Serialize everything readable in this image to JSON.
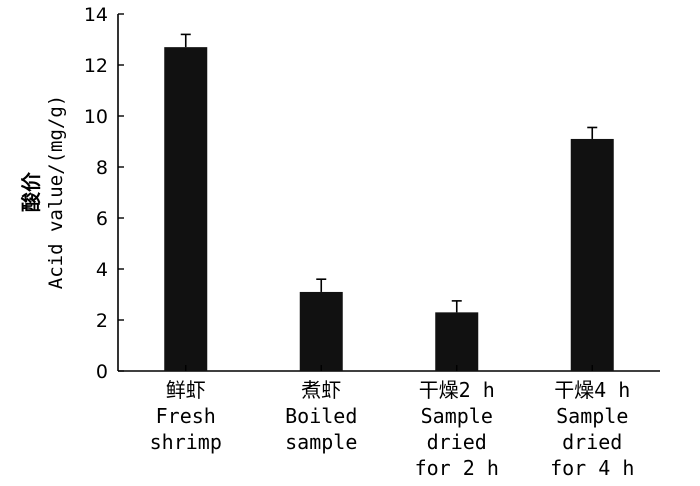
{
  "chart_data": {
    "type": "bar",
    "categories": [
      [
        "鲜虾",
        "Fresh",
        "shrimp"
      ],
      [
        "煮虾",
        "Boiled",
        "sample"
      ],
      [
        "干燥2 h",
        "Sample",
        "dried",
        "for 2 h"
      ],
      [
        "干燥4 h",
        "Sample",
        "dried",
        "for 4 h"
      ]
    ],
    "values": [
      12.7,
      3.1,
      2.3,
      9.1
    ],
    "errors": [
      0.5,
      0.5,
      0.45,
      0.45
    ],
    "ylabel_cn": "酸价",
    "ylabel": "Acid value/(mg/g)",
    "xlabel": "",
    "ylim": [
      0,
      14
    ],
    "yticks": [
      0,
      2,
      4,
      6,
      8,
      10,
      12,
      14
    ],
    "grid": false,
    "bar_color": "#111111"
  }
}
